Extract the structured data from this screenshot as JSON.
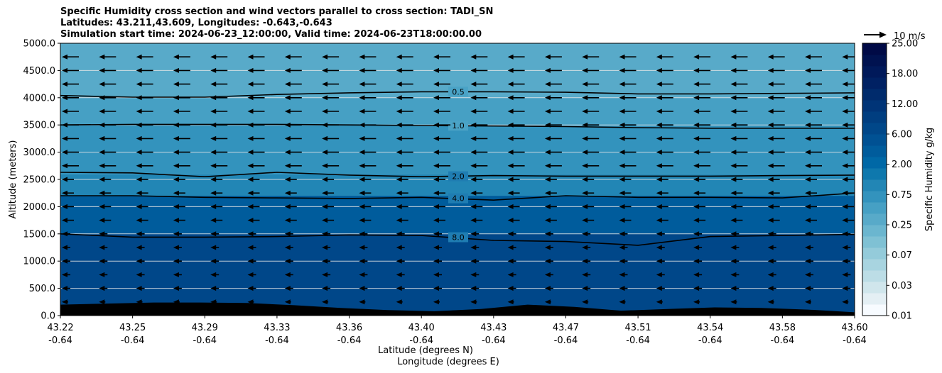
{
  "chart_data": {
    "type": "contourf",
    "title_lines": [
      "Specific Humidity cross section and wind vectors parallel to cross section: TADI_SN",
      "Latitudes: 43.211,43.609, Longitudes: -0.643,-0.643",
      "Simulation start time: 2024-06-23_12:00:00, Valid time: 2024-06-23T18:00:00.00"
    ],
    "xlabel": "Latitude (degrees N)",
    "xlabel2": "Longitude (degrees E)",
    "ylabel": "Altitude (meters)",
    "ylim": [
      0,
      5000
    ],
    "y_ticks": [
      "0.0",
      "500.0",
      "1000.0",
      "1500.0",
      "2000.0",
      "2500.0",
      "3000.0",
      "3500.0",
      "4000.0",
      "4500.0",
      "5000.0"
    ],
    "x_tick_lat": [
      "43.22",
      "43.25",
      "43.29",
      "43.33",
      "43.36",
      "43.40",
      "43.43",
      "43.47",
      "43.51",
      "43.54",
      "43.58",
      "43.60"
    ],
    "x_tick_lon": [
      "-0.64",
      "-0.64",
      "-0.64",
      "-0.64",
      "-0.64",
      "-0.64",
      "-0.64",
      "-0.64",
      "-0.64",
      "-0.64",
      "-0.64",
      "-0.64"
    ],
    "colorbar": {
      "label": "Specific Humidity g/kg",
      "tick_labels": [
        "0.01",
        "0.03",
        "0.07",
        "0.25",
        "0.75",
        "2.00",
        "6.00",
        "12.00",
        "18.00",
        "25.00"
      ],
      "colors": [
        "#f7fbff",
        "#e4eff4",
        "#d0e6ec",
        "#bcdde6",
        "#a8d4e0",
        "#94cbda",
        "#7fc1d4",
        "#6bb6cf",
        "#58aac9",
        "#46a0c4",
        "#3393bd",
        "#2286b5",
        "#0e78ad",
        "#0068a6",
        "#005c9c",
        "#005193",
        "#004789",
        "#003e80",
        "#003477",
        "#002b6c",
        "#002163",
        "#00195a",
        "#001250",
        "#000a46"
      ]
    },
    "contours": [
      {
        "label": "0.5",
        "alt": [
          4040,
          4010,
          4010,
          4060,
          4090,
          4110,
          4110,
          4100,
          4070,
          4070,
          4080,
          4090
        ]
      },
      {
        "label": "1.0",
        "alt": [
          3500,
          3510,
          3510,
          3510,
          3500,
          3490,
          3480,
          3470,
          3450,
          3440,
          3440,
          3440
        ]
      },
      {
        "label": "2.0",
        "alt": [
          2630,
          2620,
          2550,
          2630,
          2580,
          2550,
          2570,
          2560,
          2560,
          2560,
          2570,
          2580
        ]
      },
      {
        "label": "4.0",
        "alt": [
          2200,
          2200,
          2170,
          2160,
          2150,
          2170,
          2120,
          2200,
          2170,
          2170,
          2160,
          2250
        ]
      },
      {
        "label": "8.0",
        "alt": [
          1500,
          1440,
          1440,
          1450,
          1480,
          1470,
          1380,
          1360,
          1290,
          1450,
          1470,
          1490
        ]
      }
    ],
    "terrain_m": [
      200,
      220,
      240,
      240,
      230,
      190,
      140,
      100,
      80,
      120,
      200,
      160,
      90,
      120,
      150,
      140,
      110,
      60
    ],
    "wind": {
      "reference_label": "10 m/s",
      "direction": "southward (leftward)"
    }
  }
}
